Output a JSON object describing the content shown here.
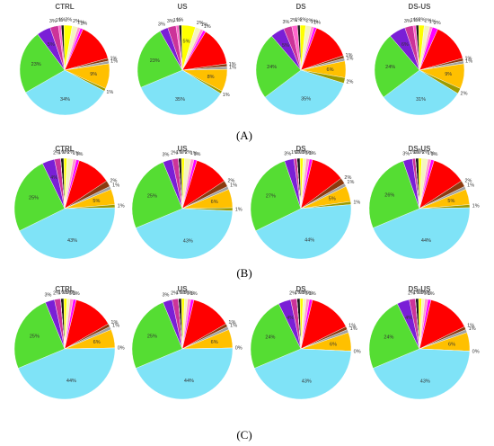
{
  "panels": [
    "(A)",
    "(B)",
    "(C)"
  ],
  "chart_data": [
    {
      "type": "pie",
      "title": "CTRL",
      "values": [
        1,
        3,
        2,
        1,
        1,
        14,
        1,
        1,
        9,
        1,
        34,
        23,
        5,
        3,
        1
      ],
      "value_labels": [
        "1%",
        "3%",
        "2%",
        "1%",
        "1%",
        null,
        "1%",
        "1%",
        "9%",
        "1%",
        "34%",
        "23%",
        "5%",
        "3%",
        "1%"
      ],
      "colors": [
        "#1a1a1a",
        "#ffff00",
        "#f4f4c0",
        "#ff99cc",
        "#ff00ff",
        "#ff0000",
        "#8b3a0f",
        "#a0a0a0",
        "#ffc000",
        "#9c9c00",
        "#7fe3f7",
        "#55dd33",
        "#7a1fd6",
        "#cc3399",
        "#ff66cc"
      ]
    },
    {
      "type": "pie",
      "title": "US",
      "values": [
        1,
        5,
        2,
        1,
        1,
        14,
        1,
        1,
        8,
        1,
        35,
        23,
        3,
        3,
        1
      ],
      "value_labels": [
        "1%",
        "5%",
        "2%",
        "1%",
        "1%",
        null,
        "1%",
        "1%",
        "8%",
        "1%",
        "35%",
        "23%",
        "3%",
        "3%",
        "1%"
      ],
      "colors": [
        "#1a1a1a",
        "#ffff00",
        "#f4f4c0",
        "#ff99cc",
        "#ff00ff",
        "#ff0000",
        "#8b3a0f",
        "#a0a0a0",
        "#ffc000",
        "#9c9c00",
        "#7fe3f7",
        "#55dd33",
        "#7a1fd6",
        "#cc3399",
        "#ff66cc"
      ]
    },
    {
      "type": "pie",
      "title": "DS",
      "values": [
        1,
        2,
        2,
        1,
        1,
        14,
        1,
        1,
        6,
        2,
        35,
        24,
        5,
        3,
        2
      ],
      "value_labels": [
        "1%",
        "2%",
        "2%",
        "1%",
        "1%",
        null,
        "1%",
        "1%",
        "6%",
        "2%",
        "35%",
        "24%",
        "5%",
        "3%",
        "2%"
      ],
      "colors": [
        "#1a1a1a",
        "#ffff00",
        "#f4f4c0",
        "#ff99cc",
        "#ff00ff",
        "#ff0000",
        "#8b3a0f",
        "#a0a0a0",
        "#ffc000",
        "#9c9c00",
        "#7fe3f7",
        "#55dd33",
        "#7a1fd6",
        "#cc3399",
        "#ff66cc"
      ]
    },
    {
      "type": "pie",
      "title": "DS-US",
      "values": [
        1,
        2,
        2,
        1,
        2,
        14,
        1,
        1,
        9,
        2,
        31,
        24,
        6,
        3,
        1
      ],
      "value_labels": [
        "1%",
        "2%",
        "2%",
        "1%",
        "2%",
        null,
        "1%",
        "1%",
        "9%",
        "2%",
        "31%",
        "24%",
        "6%",
        "3%",
        "1%"
      ],
      "colors": [
        "#1a1a1a",
        "#ffff00",
        "#f4f4c0",
        "#ff99cc",
        "#ff00ff",
        "#ff0000",
        "#8b3a0f",
        "#a0a0a0",
        "#ffc000",
        "#9c9c00",
        "#7fe3f7",
        "#55dd33",
        "#7a1fd6",
        "#cc3399",
        "#ff66cc"
      ]
    },
    {
      "type": "pie",
      "title": "CTRL",
      "values": [
        1,
        1,
        2,
        1,
        1,
        11,
        2,
        1,
        5,
        1,
        43,
        25,
        4,
        2,
        0
      ],
      "value_labels": [
        "1%",
        "1%",
        "2%",
        "1%",
        "1%",
        null,
        "2%",
        "1%",
        "5%",
        "1%",
        "43%",
        "25%",
        "4%",
        "2%",
        null
      ],
      "colors": [
        "#1a1a1a",
        "#ffff00",
        "#f4f4c0",
        "#ff99cc",
        "#ff00ff",
        "#ff0000",
        "#8b3a0f",
        "#a0a0a0",
        "#ffc000",
        "#9c9c00",
        "#7fe3f7",
        "#55dd33",
        "#7a1fd6",
        "#cc3399",
        "#ff66cc"
      ]
    },
    {
      "type": "pie",
      "title": "US",
      "values": [
        1,
        1,
        2,
        1,
        1,
        11,
        2,
        1,
        6,
        1,
        43,
        25,
        3,
        2,
        0
      ],
      "value_labels": [
        "1%",
        "1%",
        "2%",
        "1%",
        "1%",
        null,
        "2%",
        "1%",
        "6%",
        "1%",
        "43%",
        "25%",
        "3%",
        "2%",
        null
      ],
      "colors": [
        "#1a1a1a",
        "#ffff00",
        "#f4f4c0",
        "#ff99cc",
        "#ff00ff",
        "#ff0000",
        "#8b3a0f",
        "#a0a0a0",
        "#ffc000",
        "#9c9c00",
        "#7fe3f7",
        "#55dd33",
        "#7a1fd6",
        "#cc3399",
        "#ff66cc"
      ]
    },
    {
      "type": "pie",
      "title": "DS",
      "values": [
        1,
        1,
        1,
        1,
        1,
        11,
        2,
        1,
        5,
        1,
        44,
        27,
        3,
        1,
        0
      ],
      "value_labels": [
        "1%",
        "1%",
        "1%",
        "1%",
        "1%",
        null,
        "2%",
        "1%",
        "5%",
        "1%",
        "44%",
        "27%",
        "3%",
        "1%",
        null
      ],
      "colors": [
        "#1a1a1a",
        "#ffff00",
        "#f4f4c0",
        "#ff99cc",
        "#ff00ff",
        "#ff0000",
        "#8b3a0f",
        "#a0a0a0",
        "#ffc000",
        "#9c9c00",
        "#7fe3f7",
        "#55dd33",
        "#7a1fd6",
        "#cc3399",
        "#ff66cc"
      ]
    },
    {
      "type": "pie",
      "title": "DS-US",
      "values": [
        1,
        1,
        2,
        1,
        1,
        11,
        2,
        1,
        5,
        1,
        44,
        26,
        3,
        1,
        0
      ],
      "value_labels": [
        "1%",
        "1%",
        "2%",
        "1%",
        "1%",
        null,
        "2%",
        "1%",
        "5%",
        "1%",
        "44%",
        "26%",
        "3%",
        "1%",
        null
      ],
      "colors": [
        "#1a1a1a",
        "#ffff00",
        "#f4f4c0",
        "#ff99cc",
        "#ff00ff",
        "#ff0000",
        "#8b3a0f",
        "#a0a0a0",
        "#ffc000",
        "#9c9c00",
        "#7fe3f7",
        "#55dd33",
        "#7a1fd6",
        "#cc3399",
        "#ff66cc"
      ]
    },
    {
      "type": "pie",
      "title": "CTRL",
      "values": [
        1,
        1,
        1,
        1,
        1,
        13,
        1,
        1,
        6,
        0,
        44,
        25,
        3,
        2,
        0
      ],
      "value_labels": [
        "1%",
        "1%",
        "1%",
        "1%",
        "1%",
        null,
        "1%",
        "1%",
        "6%",
        "0%",
        "44%",
        "25%",
        "3%",
        "2%",
        null
      ],
      "colors": [
        "#1a1a1a",
        "#ffff00",
        "#f4f4c0",
        "#ff99cc",
        "#ff00ff",
        "#ff0000",
        "#8b3a0f",
        "#a0a0a0",
        "#ffc000",
        "#9c9c00",
        "#7fe3f7",
        "#55dd33",
        "#7a1fd6",
        "#cc3399",
        "#ff66cc"
      ]
    },
    {
      "type": "pie",
      "title": "US",
      "values": [
        1,
        1,
        1,
        1,
        1,
        13,
        1,
        1,
        6,
        0,
        44,
        25,
        3,
        2,
        0
      ],
      "value_labels": [
        "1%",
        "1%",
        "1%",
        "1%",
        "1%",
        null,
        "1%",
        "1%",
        "6%",
        "0%",
        "44%",
        "25%",
        "3%",
        "2%",
        null
      ],
      "colors": [
        "#1a1a1a",
        "#ffff00",
        "#f4f4c0",
        "#ff99cc",
        "#ff00ff",
        "#ff0000",
        "#8b3a0f",
        "#a0a0a0",
        "#ffc000",
        "#9c9c00",
        "#7fe3f7",
        "#55dd33",
        "#7a1fd6",
        "#cc3399",
        "#ff66cc"
      ]
    },
    {
      "type": "pie",
      "title": "DS",
      "values": [
        1,
        1,
        1,
        1,
        1,
        14,
        1,
        1,
        6,
        0,
        43,
        24,
        4,
        2,
        0
      ],
      "value_labels": [
        "1%",
        "1%",
        "1%",
        "1%",
        "1%",
        null,
        "1%",
        "1%",
        "6%",
        "0%",
        "43%",
        "24%",
        "4%",
        "2%",
        null
      ],
      "colors": [
        "#1a1a1a",
        "#ffff00",
        "#f4f4c0",
        "#ff99cc",
        "#ff00ff",
        "#ff0000",
        "#8b3a0f",
        "#a0a0a0",
        "#ffc000",
        "#9c9c00",
        "#7fe3f7",
        "#55dd33",
        "#7a1fd6",
        "#cc3399",
        "#ff66cc"
      ]
    },
    {
      "type": "pie",
      "title": "DS-US",
      "values": [
        1,
        1,
        1,
        1,
        1,
        14,
        1,
        1,
        6,
        0,
        43,
        24,
        4,
        2,
        0
      ],
      "value_labels": [
        "1%",
        "1%",
        "1%",
        "1%",
        "1%",
        null,
        "1%",
        "1%",
        "6%",
        "0%",
        "43%",
        "24%",
        "4%",
        "2%",
        null
      ],
      "colors": [
        "#1a1a1a",
        "#ffff00",
        "#f4f4c0",
        "#ff99cc",
        "#ff00ff",
        "#ff0000",
        "#8b3a0f",
        "#a0a0a0",
        "#ffc000",
        "#9c9c00",
        "#7fe3f7",
        "#55dd33",
        "#7a1fd6",
        "#cc3399",
        "#ff66cc"
      ]
    }
  ]
}
